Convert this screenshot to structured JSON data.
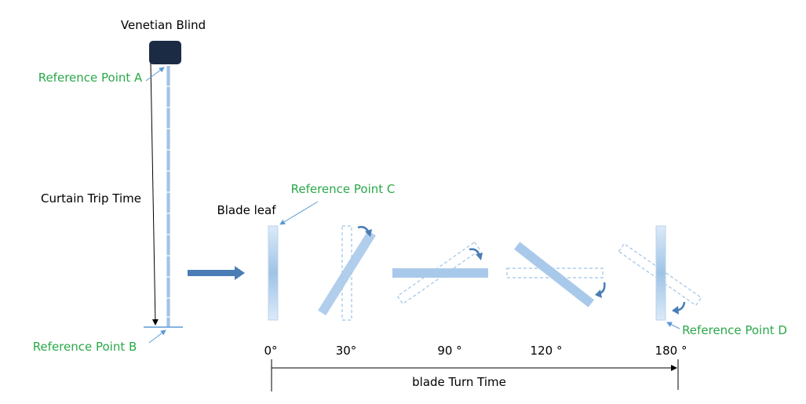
{
  "title": "Venetian Blind",
  "labels": {
    "curtain_trip": "Curtain Trip Time",
    "blade_leaf": "Blade leaf",
    "blade_turn": "blade Turn Time"
  },
  "reference_points": {
    "a": "Reference Point A",
    "b": "Reference Point B",
    "c": "Reference Point C",
    "d": "Reference Point D"
  },
  "angles": [
    "0°",
    "30°",
    "90 °",
    "120 °",
    "180 °"
  ],
  "colors": {
    "blind_head": "#1c2b44",
    "blade_fill": "#a9c9ea",
    "blade_solid": "#9fc3e6",
    "dashed_outline": "#9fc3e6",
    "arrow_fill": "#4a7db5",
    "reference_text": "#2aa84a"
  }
}
